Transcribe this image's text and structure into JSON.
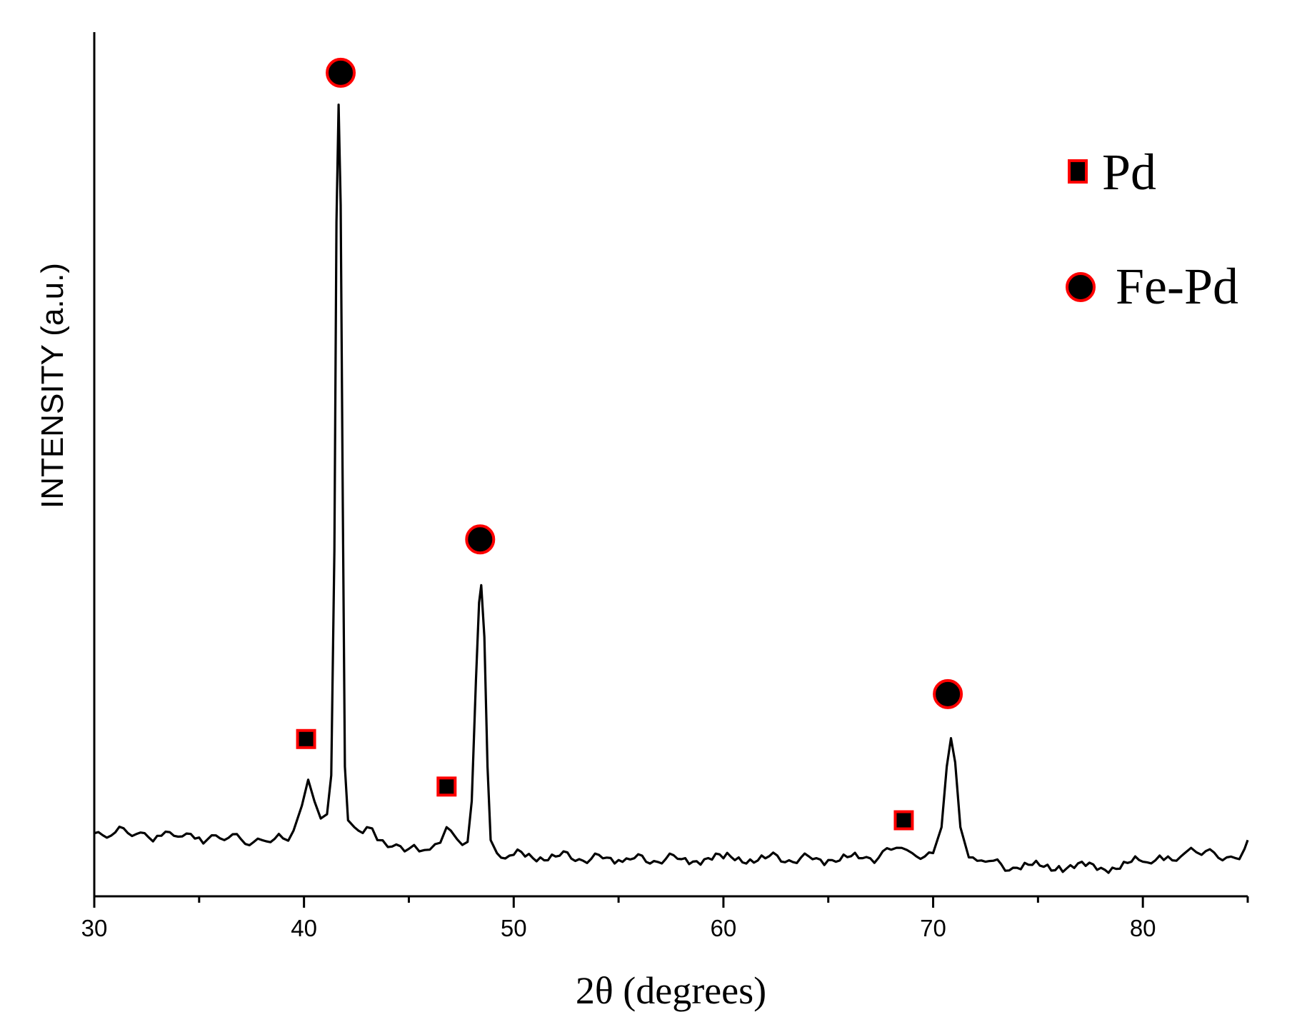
{
  "chart_data": {
    "type": "line",
    "title": "",
    "xlabel": "2θ (degrees)",
    "ylabel": "INTENSITY (a.u.)",
    "xlim": [
      30,
      85
    ],
    "ylim": [
      0,
      100
    ],
    "x_ticks": [
      30,
      40,
      50,
      60,
      70,
      80
    ],
    "x_tick_labels": [
      "30",
      "40",
      "50",
      "60",
      "70",
      "80"
    ],
    "x_minor_step": 5,
    "y_ticks": [],
    "grid": false,
    "legend_position": "top-right",
    "series": [
      {
        "color": "#000000",
        "points": [
          [
            30.0,
            7.3
          ],
          [
            31.0,
            7.4
          ],
          [
            32.0,
            7.2
          ],
          [
            33.0,
            7.0
          ],
          [
            34.0,
            6.9
          ],
          [
            35.0,
            6.8
          ],
          [
            36.0,
            6.7
          ],
          [
            37.0,
            6.6
          ],
          [
            38.0,
            6.5
          ],
          [
            39.0,
            6.7
          ],
          [
            39.5,
            7.6
          ],
          [
            39.9,
            10.5
          ],
          [
            40.2,
            13.5
          ],
          [
            40.5,
            11.0
          ],
          [
            40.8,
            9.0
          ],
          [
            41.1,
            9.5
          ],
          [
            41.3,
            14.0
          ],
          [
            41.45,
            40.0
          ],
          [
            41.55,
            78.0
          ],
          [
            41.65,
            91.6
          ],
          [
            41.75,
            80.0
          ],
          [
            41.85,
            45.0
          ],
          [
            41.95,
            15.0
          ],
          [
            42.1,
            8.8
          ],
          [
            42.4,
            8.0
          ],
          [
            43.0,
            8.0
          ],
          [
            43.5,
            6.5
          ],
          [
            44.0,
            5.7
          ],
          [
            45.0,
            5.5
          ],
          [
            45.5,
            5.2
          ],
          [
            46.0,
            5.4
          ],
          [
            46.5,
            6.2
          ],
          [
            46.8,
            8.0
          ],
          [
            47.0,
            7.6
          ],
          [
            47.3,
            6.6
          ],
          [
            47.8,
            6.3
          ],
          [
            48.0,
            11.0
          ],
          [
            48.2,
            25.0
          ],
          [
            48.35,
            34.0
          ],
          [
            48.45,
            36.0
          ],
          [
            48.6,
            30.0
          ],
          [
            48.75,
            15.0
          ],
          [
            48.9,
            6.5
          ],
          [
            49.2,
            5.0
          ],
          [
            50.0,
            4.8
          ],
          [
            52.0,
            4.6
          ],
          [
            55.0,
            4.2
          ],
          [
            58.0,
            4.3
          ],
          [
            60.0,
            4.4
          ],
          [
            62.0,
            4.4
          ],
          [
            65.0,
            4.2
          ],
          [
            67.0,
            4.4
          ],
          [
            68.0,
            5.4
          ],
          [
            68.5,
            5.6
          ],
          [
            69.0,
            5.0
          ],
          [
            70.0,
            5.0
          ],
          [
            70.4,
            8.0
          ],
          [
            70.65,
            15.0
          ],
          [
            70.85,
            18.3
          ],
          [
            71.05,
            15.5
          ],
          [
            71.3,
            8.0
          ],
          [
            71.7,
            4.5
          ],
          [
            72.5,
            4.0
          ],
          [
            74.0,
            3.3
          ],
          [
            76.0,
            3.5
          ],
          [
            78.0,
            3.3
          ],
          [
            80.0,
            4.0
          ],
          [
            81.0,
            4.2
          ],
          [
            82.0,
            5.0
          ],
          [
            82.3,
            5.6
          ],
          [
            82.8,
            4.8
          ],
          [
            84.0,
            4.5
          ],
          [
            84.6,
            4.3
          ],
          [
            84.85,
            5.5
          ],
          [
            85.0,
            6.5
          ]
        ]
      }
    ],
    "legend": [
      {
        "label": "Pd",
        "marker": "square",
        "fill": "#000000",
        "edge": "#ff0000"
      },
      {
        "label": "Fe-Pd",
        "marker": "circle",
        "fill": "#000000",
        "edge": "#ff0000"
      }
    ],
    "annotations": [
      {
        "marker": "square",
        "x": 40.1,
        "y": 18.2
      },
      {
        "marker": "circle",
        "x": 41.75,
        "y": 95.3
      },
      {
        "marker": "square",
        "x": 46.8,
        "y": 12.7
      },
      {
        "marker": "circle",
        "x": 48.4,
        "y": 41.3
      },
      {
        "marker": "square",
        "x": 68.6,
        "y": 8.8
      },
      {
        "marker": "circle",
        "x": 70.7,
        "y": 23.4
      }
    ]
  }
}
